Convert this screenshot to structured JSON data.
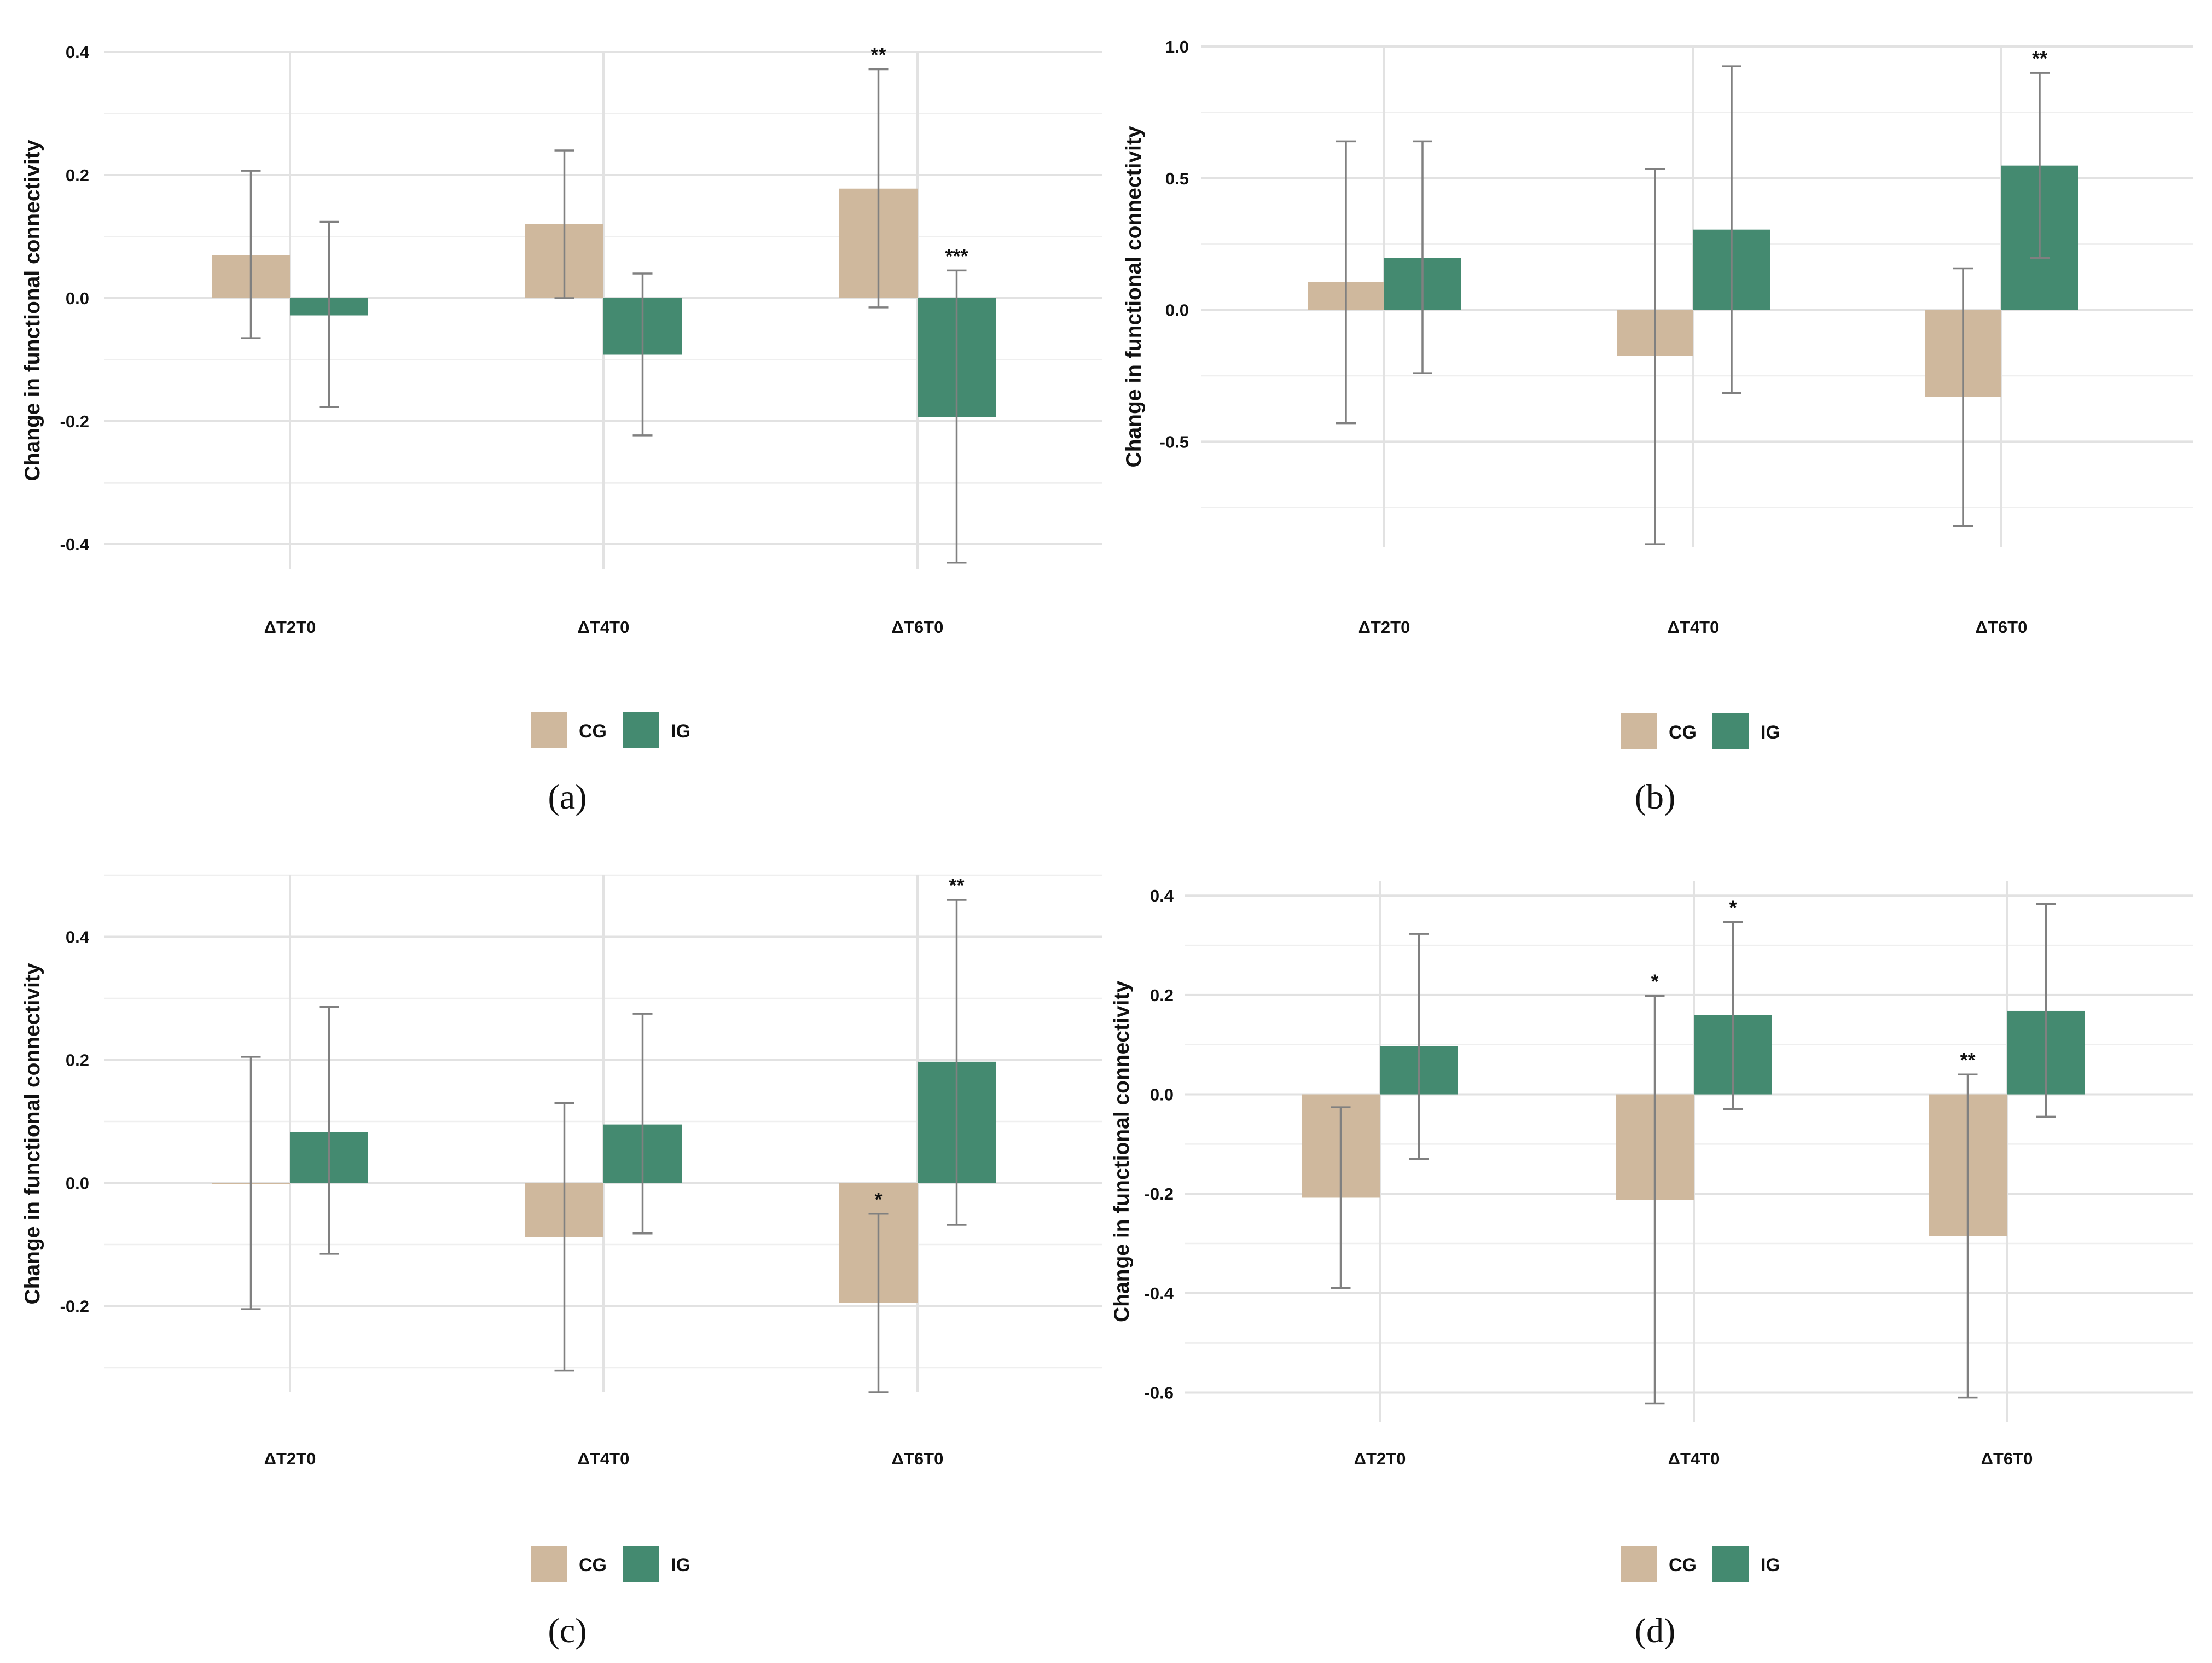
{
  "legend": {
    "cg_label": "CG",
    "ig_label": "IG"
  },
  "colors": {
    "cg": "#cfb89d",
    "ig": "#448a70",
    "error_bar": "#808080",
    "grid": "#e2e2e2"
  },
  "chart_data": [
    {
      "id": "a",
      "type": "bar",
      "caption": "(a)",
      "ylabel": "Change in functional connectivity",
      "categories": [
        "ΔT2T0",
        "ΔT4T0",
        "ΔT6T0"
      ],
      "ylim": [
        -0.44,
        0.4
      ],
      "yticks": [
        -0.4,
        -0.2,
        0.0,
        0.2,
        0.4
      ],
      "ytick_labels": [
        "-0.4",
        "-0.2",
        "0.0",
        "0.2",
        "0.4"
      ],
      "series": [
        {
          "name": "CG",
          "values": [
            0.07,
            0.12,
            0.178
          ],
          "err_low": [
            -0.065,
            0.0,
            -0.015
          ],
          "err_high": [
            0.207,
            0.24,
            0.372
          ],
          "sig": [
            "",
            "",
            "**"
          ]
        },
        {
          "name": "IG",
          "values": [
            -0.028,
            -0.092,
            -0.193
          ],
          "err_low": [
            -0.177,
            -0.223,
            -0.43
          ],
          "err_high": [
            0.124,
            0.04,
            0.045
          ],
          "sig": [
            "",
            "",
            "***"
          ]
        }
      ]
    },
    {
      "id": "b",
      "type": "bar",
      "caption": "(b)",
      "ylabel": "Change in functional connectivity",
      "categories": [
        "ΔT2T0",
        "ΔT4T0",
        "ΔT6T0"
      ],
      "ylim": [
        -0.9,
        1.0
      ],
      "yticks": [
        -0.5,
        0.0,
        0.5,
        1.0
      ],
      "ytick_labels": [
        "-0.5",
        "0.0",
        "0.5",
        "1.0"
      ],
      "series": [
        {
          "name": "CG",
          "values": [
            0.107,
            -0.175,
            -0.33
          ],
          "err_low": [
            -0.43,
            -0.89,
            -0.82
          ],
          "err_high": [
            0.64,
            0.535,
            0.158
          ],
          "sig": [
            "",
            "",
            ""
          ]
        },
        {
          "name": "IG",
          "values": [
            0.198,
            0.305,
            0.548
          ],
          "err_low": [
            -0.24,
            -0.315,
            0.198
          ],
          "err_high": [
            0.64,
            0.925,
            0.9
          ],
          "sig": [
            "",
            "",
            "**"
          ]
        }
      ]
    },
    {
      "id": "c",
      "type": "bar",
      "caption": "(c)",
      "ylabel": "Change in functional connectivity",
      "categories": [
        "ΔT2T0",
        "ΔT4T0",
        "ΔT6T0"
      ],
      "ylim": [
        -0.34,
        0.5
      ],
      "yticks": [
        -0.2,
        0.0,
        0.2,
        0.4
      ],
      "ytick_labels": [
        "-0.2",
        "0.0",
        "0.2",
        "0.4"
      ],
      "series": [
        {
          "name": "CG",
          "values": [
            0.0,
            -0.088,
            -0.195
          ],
          "err_low": [
            -0.205,
            -0.305,
            -0.34
          ],
          "err_high": [
            0.205,
            0.13,
            -0.05
          ],
          "sig": [
            "",
            "",
            "*"
          ]
        },
        {
          "name": "IG",
          "values": [
            0.083,
            0.095,
            0.197
          ],
          "err_low": [
            -0.115,
            -0.082,
            -0.068
          ],
          "err_high": [
            0.286,
            0.275,
            0.46
          ],
          "sig": [
            "",
            "",
            "**"
          ]
        }
      ]
    },
    {
      "id": "d",
      "type": "bar",
      "caption": "(d)",
      "ylabel": "Change in functional connectivity",
      "categories": [
        "ΔT2T0",
        "ΔT4T0",
        "ΔT6T0"
      ],
      "ylim": [
        -0.66,
        0.43
      ],
      "yticks": [
        -0.6,
        -0.4,
        -0.2,
        0.0,
        0.2,
        0.4
      ],
      "ytick_labels": [
        "-0.6",
        "-0.4",
        "-0.2",
        "0.0",
        "0.2",
        "0.4"
      ],
      "series": [
        {
          "name": "CG",
          "values": [
            -0.208,
            -0.212,
            -0.285
          ],
          "err_low": [
            -0.39,
            -0.622,
            -0.61
          ],
          "err_high": [
            -0.026,
            0.198,
            0.04
          ],
          "sig": [
            "",
            "*",
            "**"
          ]
        },
        {
          "name": "IG",
          "values": [
            0.097,
            0.16,
            0.168
          ],
          "err_low": [
            -0.13,
            -0.03,
            -0.045
          ],
          "err_high": [
            0.323,
            0.347,
            0.383
          ],
          "sig": [
            "",
            "*",
            ""
          ]
        }
      ]
    }
  ]
}
